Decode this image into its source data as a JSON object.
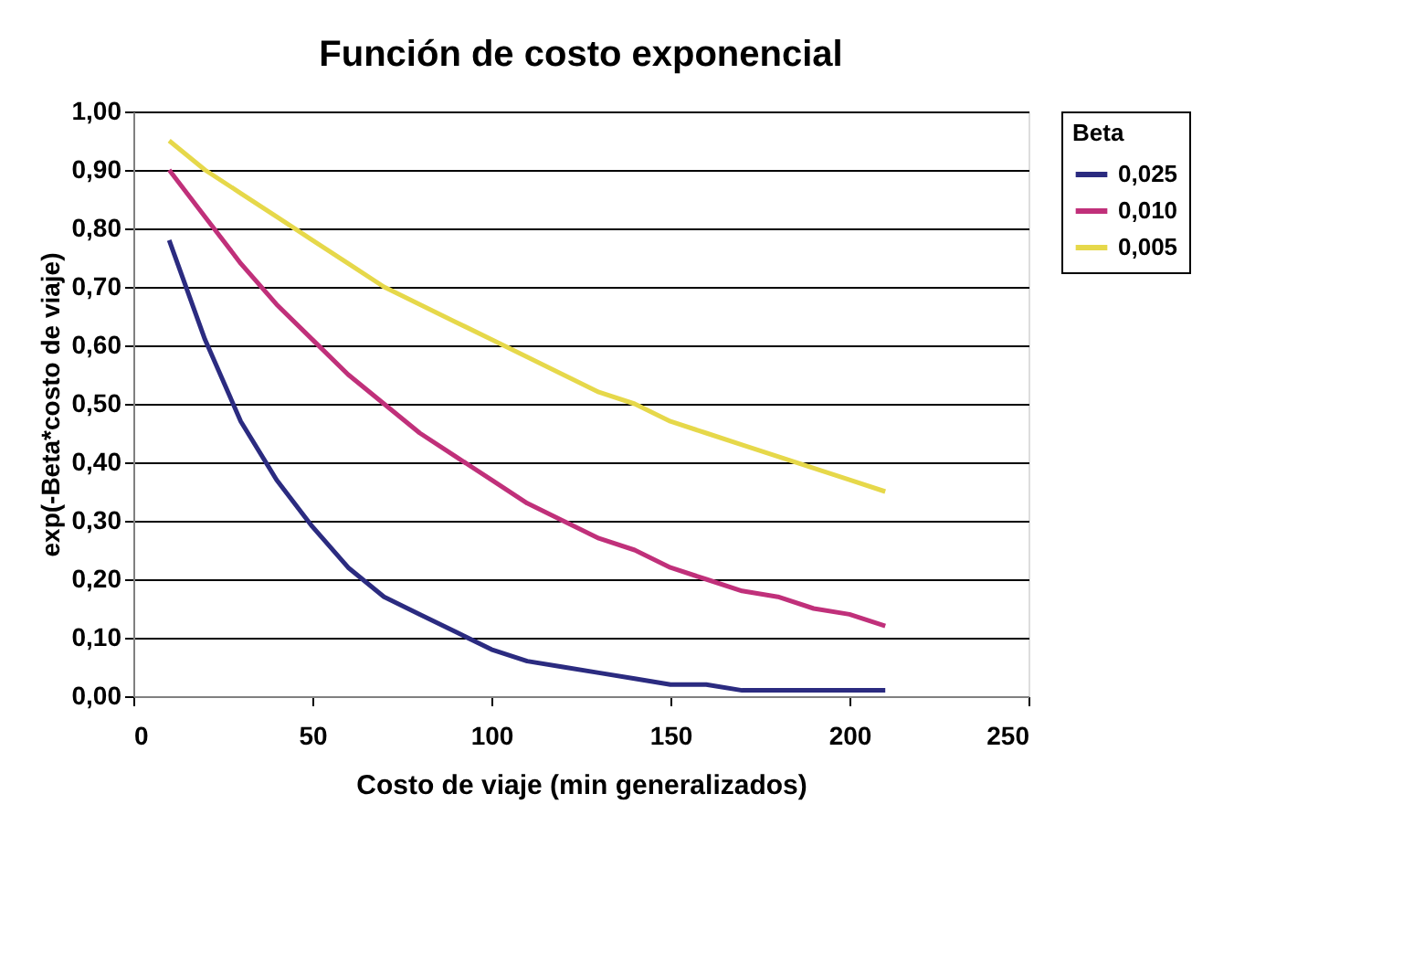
{
  "chart_data": {
    "type": "line",
    "title": "Función de costo exponencial",
    "xlabel": "Costo de viaje (min generalizados)",
    "ylabel": "exp(-Beta*costo de viaje)",
    "legend_title": "Beta",
    "legend": "right",
    "grid": "y",
    "marker": "none",
    "line_style": "solid",
    "x": [
      10,
      20,
      30,
      40,
      50,
      60,
      70,
      80,
      90,
      100,
      110,
      120,
      130,
      140,
      150,
      160,
      170,
      180,
      190,
      200,
      210
    ],
    "xlim": [
      0,
      250
    ],
    "xticks": [
      0,
      50,
      100,
      150,
      200,
      250
    ],
    "ylim": [
      0,
      1
    ],
    "yticks": [
      {
        "value": 0,
        "label": "0,00"
      },
      {
        "value": 0.1,
        "label": "0,10"
      },
      {
        "value": 0.2,
        "label": "0,20"
      },
      {
        "value": 0.3,
        "label": "0,30"
      },
      {
        "value": 0.4,
        "label": "0,40"
      },
      {
        "value": 0.5,
        "label": "0,50"
      },
      {
        "value": 0.6,
        "label": "0,60"
      },
      {
        "value": 0.7,
        "label": "0,70"
      },
      {
        "value": 0.8,
        "label": "0,80"
      },
      {
        "value": 0.9,
        "label": "0,90"
      },
      {
        "value": 1,
        "label": "1,00"
      }
    ],
    "series": [
      {
        "name": "0,025",
        "color": "#2b2b80",
        "values": [
          0.78,
          0.61,
          0.47,
          0.37,
          0.29,
          0.22,
          0.17,
          0.14,
          0.11,
          0.08,
          0.06,
          0.05,
          0.04,
          0.03,
          0.02,
          0.02,
          0.01,
          0.01,
          0.01,
          0.01,
          0.01
        ]
      },
      {
        "name": "0,010",
        "color": "#c0307a",
        "values": [
          0.9,
          0.82,
          0.74,
          0.67,
          0.61,
          0.55,
          0.5,
          0.45,
          0.41,
          0.37,
          0.33,
          0.3,
          0.27,
          0.25,
          0.22,
          0.2,
          0.18,
          0.17,
          0.15,
          0.14,
          0.12
        ]
      },
      {
        "name": "0,005",
        "color": "#e6d84a",
        "values": [
          0.95,
          0.9,
          0.86,
          0.82,
          0.78,
          0.74,
          0.7,
          0.67,
          0.64,
          0.61,
          0.58,
          0.55,
          0.52,
          0.5,
          0.47,
          0.45,
          0.43,
          0.41,
          0.39,
          0.37,
          0.35
        ]
      }
    ]
  }
}
